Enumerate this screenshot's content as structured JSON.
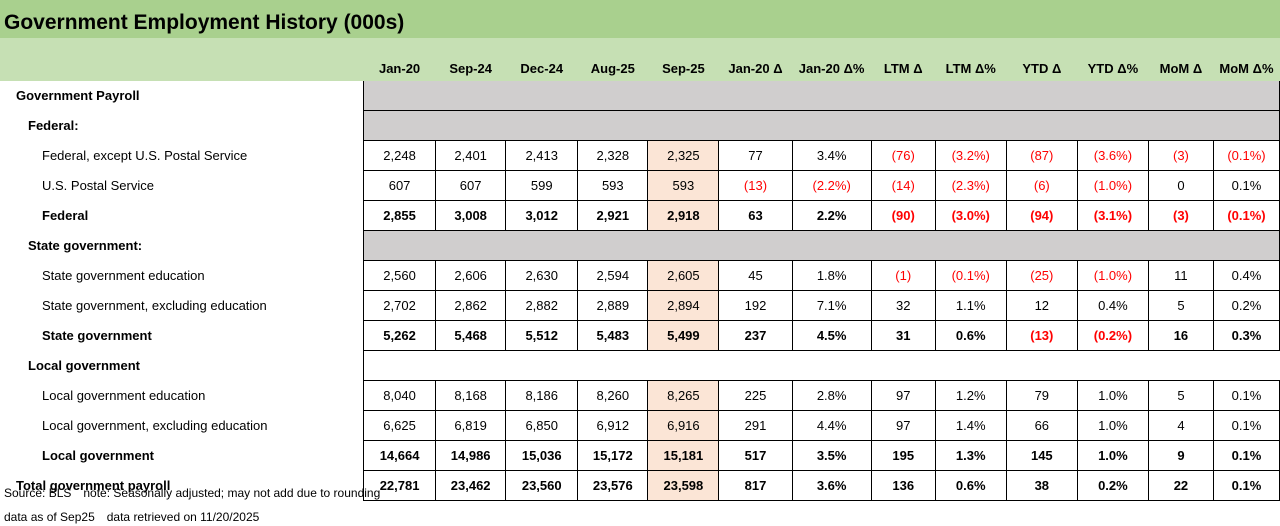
{
  "title": "Government Employment History (000s)",
  "columns": [
    "Jan-20",
    "Sep-24",
    "Dec-24",
    "Aug-25",
    "Sep-25",
    "Jan-20 Δ",
    "Jan-20 Δ%",
    "LTM Δ",
    "LTM Δ%",
    "YTD Δ",
    "YTD Δ%",
    "MoM Δ",
    "MoM Δ%"
  ],
  "highlight_column": "Sep-25",
  "colors": {
    "title_bg": "#a9d08e",
    "header_bg": "#c6e0b4",
    "section_bg": "#d0cece",
    "highlight_bg": "#fbe5d6",
    "negative": "#ff0000"
  },
  "rows": [
    {
      "label": "Government Payroll",
      "type": "section",
      "level": 0,
      "cells": []
    },
    {
      "label": "Federal:",
      "type": "section",
      "level": 1,
      "cells": []
    },
    {
      "label": "Federal, except U.S. Postal Service",
      "type": "detail",
      "level": 2,
      "cells": [
        "2,248",
        "2,401",
        "2,413",
        "2,328",
        "2,325",
        "77",
        "3.4%",
        "(76)",
        "(3.2%)",
        "(87)",
        "(3.6%)",
        "(3)",
        "(0.1%)"
      ]
    },
    {
      "label": "U.S. Postal Service",
      "type": "detail",
      "level": 2,
      "cells": [
        "607",
        "607",
        "599",
        "593",
        "593",
        "(13)",
        "(2.2%)",
        "(14)",
        "(2.3%)",
        "(6)",
        "(1.0%)",
        "0",
        "0.1%"
      ]
    },
    {
      "label": "Federal",
      "type": "subtotal",
      "level": 2,
      "cells": [
        "2,855",
        "3,008",
        "3,012",
        "2,921",
        "2,918",
        "63",
        "2.2%",
        "(90)",
        "(3.0%)",
        "(94)",
        "(3.1%)",
        "(3)",
        "(0.1%)"
      ]
    },
    {
      "label": "State government:",
      "type": "section",
      "level": 1,
      "cells": []
    },
    {
      "label": "State government education",
      "type": "detail",
      "level": 2,
      "cells": [
        "2,560",
        "2,606",
        "2,630",
        "2,594",
        "2,605",
        "45",
        "1.8%",
        "(1)",
        "(0.1%)",
        "(25)",
        "(1.0%)",
        "11",
        "0.4%"
      ]
    },
    {
      "label": "State government, excluding education",
      "type": "detail",
      "level": 2,
      "cells": [
        "2,702",
        "2,862",
        "2,882",
        "2,889",
        "2,894",
        "192",
        "7.1%",
        "32",
        "1.1%",
        "12",
        "0.4%",
        "5",
        "0.2%"
      ]
    },
    {
      "label": "State government",
      "type": "subtotal",
      "level": 2,
      "cells": [
        "5,262",
        "5,468",
        "5,512",
        "5,483",
        "5,499",
        "237",
        "4.5%",
        "31",
        "0.6%",
        "(13)",
        "(0.2%)",
        "16",
        "0.3%"
      ]
    },
    {
      "label": "Local government",
      "type": "section-plain",
      "level": 1,
      "cells": []
    },
    {
      "label": "Local government education",
      "type": "detail",
      "level": 2,
      "cells": [
        "8,040",
        "8,168",
        "8,186",
        "8,260",
        "8,265",
        "225",
        "2.8%",
        "97",
        "1.2%",
        "79",
        "1.0%",
        "5",
        "0.1%"
      ]
    },
    {
      "label": "Local government, excluding education",
      "type": "detail",
      "level": 2,
      "cells": [
        "6,625",
        "6,819",
        "6,850",
        "6,912",
        "6,916",
        "291",
        "4.4%",
        "97",
        "1.4%",
        "66",
        "1.0%",
        "4",
        "0.1%"
      ]
    },
    {
      "label": "Local government",
      "type": "subtotal",
      "level": 2,
      "cells": [
        "14,664",
        "14,986",
        "15,036",
        "15,172",
        "15,181",
        "517",
        "3.5%",
        "195",
        "1.3%",
        "145",
        "1.0%",
        "9",
        "0.1%"
      ]
    },
    {
      "label": "Total government payroll",
      "type": "total",
      "level": 0,
      "cells": [
        "22,781",
        "23,462",
        "23,560",
        "23,576",
        "23,598",
        "817",
        "3.6%",
        "136",
        "0.6%",
        "38",
        "0.2%",
        "22",
        "0.1%"
      ]
    }
  ],
  "footer": {
    "source": "Source: BLS",
    "note": "note: Seasonally adjusted; may not add due to rounding",
    "data_as_of": "data as of Sep25",
    "retrieved": "data retrieved on 11/20/2025"
  }
}
